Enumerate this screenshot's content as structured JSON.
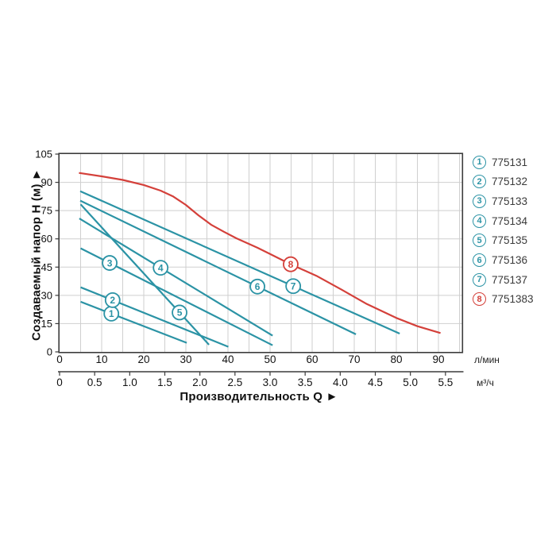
{
  "page": {
    "background": "#ffffff"
  },
  "chart_data": {
    "type": "line",
    "title": "",
    "xlabel": "Производительность Q ►",
    "ylabel": "Создаваемый напор H (м) ►",
    "grid": true,
    "legend_position": "right",
    "x_axis": {
      "primary_unit": "л/мин",
      "primary_ticks": [
        0,
        10,
        20,
        30,
        40,
        50,
        60,
        70,
        80,
        90
      ],
      "primary_max": 95.5,
      "minor_grid_step_lmin": 5,
      "secondary_unit": "м³/ч",
      "secondary_ticks": [
        "0",
        "0.5",
        "1.0",
        "1.5",
        "2.0",
        "2.5",
        "3.0",
        "3.5",
        "4.0",
        "4.5",
        "5.0",
        "5.5"
      ],
      "lmin_per_m3h": 16.6667
    },
    "y_axis": {
      "unit": "м",
      "ticks": [
        0,
        15,
        30,
        45,
        60,
        75,
        90,
        105
      ],
      "max": 105,
      "grid_step": 15
    },
    "colors": {
      "teal": "#2b93a5",
      "red": "#d4403a",
      "grid": "#cfcfcf",
      "axis": "#3c3c3c",
      "tick_text": "#111111",
      "legend_text": "#3a3a3a"
    },
    "series": [
      {
        "id": "1",
        "model": "775131",
        "color": "#2b93a5",
        "marker_q": 12.3,
        "points": [
          [
            5,
            26.6
          ],
          [
            30.2,
            4.8
          ]
        ]
      },
      {
        "id": "2",
        "model": "775132",
        "color": "#2b93a5",
        "marker_q": 12.6,
        "points": [
          [
            5,
            34.3
          ],
          [
            40.1,
            2.7
          ]
        ]
      },
      {
        "id": "3",
        "model": "775133",
        "color": "#2b93a5",
        "marker_q": 11.9,
        "points": [
          [
            5,
            55
          ],
          [
            50.6,
            3.5
          ]
        ]
      },
      {
        "id": "4",
        "model": "775134",
        "color": "#2b93a5",
        "marker_q": 24,
        "points": [
          [
            4.7,
            70.8
          ],
          [
            50.6,
            8.6
          ]
        ]
      },
      {
        "id": "5",
        "model": "775135",
        "color": "#2b93a5",
        "marker_q": 28.5,
        "points": [
          [
            5,
            78.3
          ],
          [
            35.5,
            3.8
          ]
        ]
      },
      {
        "id": "6",
        "model": "775136",
        "color": "#2b93a5",
        "marker_q": 47,
        "points": [
          [
            4.9,
            80.3
          ],
          [
            70.4,
            9.3
          ]
        ]
      },
      {
        "id": "7",
        "model": "775137",
        "color": "#2b93a5",
        "marker_q": 55.5,
        "points": [
          [
            4.9,
            85.3
          ],
          [
            80.8,
            9.7
          ]
        ]
      },
      {
        "id": "8",
        "model": "7751383",
        "color": "#d4403a",
        "marker_q": 54.9,
        "points": [
          [
            4.6,
            95
          ],
          [
            10,
            93.2
          ],
          [
            15,
            91.3
          ],
          [
            20,
            88.6
          ],
          [
            24,
            85.6
          ],
          [
            27,
            82.5
          ],
          [
            30,
            78
          ],
          [
            33,
            72.5
          ],
          [
            36,
            67.5
          ],
          [
            39,
            63.8
          ],
          [
            42,
            60.3
          ],
          [
            47,
            55.3
          ],
          [
            50,
            52
          ],
          [
            55,
            46.4
          ],
          [
            61,
            40.4
          ],
          [
            67,
            33
          ],
          [
            73,
            25.4
          ],
          [
            80,
            18
          ],
          [
            85,
            13.6
          ],
          [
            90.5,
            10
          ]
        ]
      }
    ]
  }
}
